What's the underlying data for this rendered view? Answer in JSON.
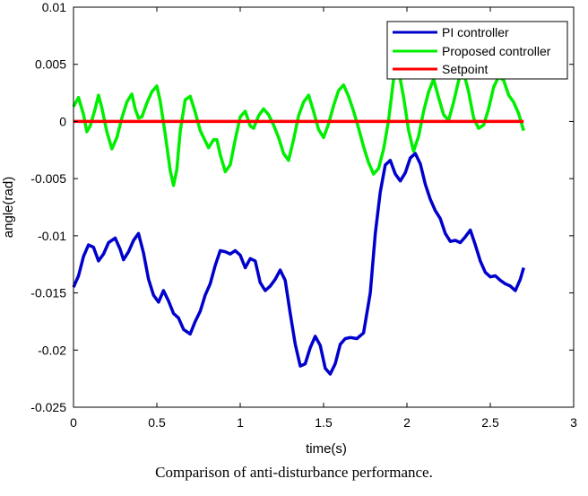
{
  "caption": "Comparison of anti-disturbance performance.",
  "chart_data": {
    "type": "line",
    "title": "",
    "xlabel": "time(s)",
    "ylabel": "angle(rad)",
    "xlim": [
      0,
      3
    ],
    "ylim": [
      -0.025,
      0.01
    ],
    "xticks": [
      0,
      0.5,
      1,
      1.5,
      2,
      2.5,
      3
    ],
    "xtick_labels": [
      "0",
      "0.5",
      "1",
      "1.5",
      "2",
      "2.5",
      "3"
    ],
    "yticks": [
      0.01,
      0.005,
      0,
      -0.005,
      -0.01,
      -0.015,
      -0.02,
      -0.025
    ],
    "ytick_labels": [
      "0.01",
      "0.005",
      "0",
      "-0.005",
      "-0.01",
      "-0.015",
      "-0.02",
      "-0.025"
    ],
    "grid": false,
    "legend_position": "top-right",
    "series": [
      {
        "name": "PI controller",
        "color": "#0000cc",
        "x": [
          0,
          0.03,
          0.06,
          0.09,
          0.12,
          0.15,
          0.18,
          0.21,
          0.25,
          0.28,
          0.3,
          0.33,
          0.36,
          0.39,
          0.42,
          0.45,
          0.48,
          0.51,
          0.54,
          0.57,
          0.6,
          0.63,
          0.66,
          0.7,
          0.73,
          0.76,
          0.79,
          0.82,
          0.85,
          0.88,
          0.91,
          0.94,
          0.97,
          1.0,
          1.03,
          1.06,
          1.09,
          1.12,
          1.15,
          1.18,
          1.21,
          1.24,
          1.27,
          1.3,
          1.33,
          1.36,
          1.39,
          1.42,
          1.45,
          1.48,
          1.51,
          1.54,
          1.57,
          1.6,
          1.63,
          1.66,
          1.7,
          1.74,
          1.78,
          1.81,
          1.84,
          1.87,
          1.9,
          1.93,
          1.96,
          1.99,
          2.02,
          2.05,
          2.08,
          2.11,
          2.14,
          2.17,
          2.2,
          2.23,
          2.26,
          2.29,
          2.32,
          2.35,
          2.38,
          2.41,
          2.44,
          2.47,
          2.5,
          2.53,
          2.56,
          2.59,
          2.62,
          2.65,
          2.68,
          2.7
        ],
        "y": [
          -0.0145,
          -0.0135,
          -0.0118,
          -0.0108,
          -0.011,
          -0.0122,
          -0.0116,
          -0.0106,
          -0.0102,
          -0.0112,
          -0.0121,
          -0.0114,
          -0.0104,
          -0.0098,
          -0.0115,
          -0.0138,
          -0.0152,
          -0.0158,
          -0.0148,
          -0.0157,
          -0.0168,
          -0.0172,
          -0.0182,
          -0.0186,
          -0.0175,
          -0.0166,
          -0.0152,
          -0.0142,
          -0.0126,
          -0.0113,
          -0.0114,
          -0.0116,
          -0.0113,
          -0.0117,
          -0.0128,
          -0.012,
          -0.0122,
          -0.0141,
          -0.0148,
          -0.0144,
          -0.0138,
          -0.013,
          -0.0139,
          -0.0168,
          -0.0195,
          -0.0214,
          -0.0212,
          -0.0198,
          -0.0188,
          -0.0196,
          -0.0216,
          -0.0221,
          -0.0212,
          -0.0195,
          -0.019,
          -0.0189,
          -0.019,
          -0.0185,
          -0.015,
          -0.0098,
          -0.0062,
          -0.0038,
          -0.0034,
          -0.0046,
          -0.0052,
          -0.0045,
          -0.0032,
          -0.0028,
          -0.0037,
          -0.0055,
          -0.0068,
          -0.0078,
          -0.0085,
          -0.0098,
          -0.0105,
          -0.0104,
          -0.0106,
          -0.0101,
          -0.0095,
          -0.0108,
          -0.0122,
          -0.0132,
          -0.0136,
          -0.0135,
          -0.0139,
          -0.0142,
          -0.0144,
          -0.0148,
          -0.0138,
          -0.0128
        ]
      },
      {
        "name": "Proposed controller",
        "color": "#00ee00",
        "x": [
          0,
          0.03,
          0.06,
          0.08,
          0.1,
          0.13,
          0.15,
          0.17,
          0.2,
          0.23,
          0.26,
          0.29,
          0.32,
          0.35,
          0.37,
          0.39,
          0.41,
          0.44,
          0.47,
          0.5,
          0.52,
          0.55,
          0.58,
          0.6,
          0.62,
          0.64,
          0.67,
          0.7,
          0.73,
          0.76,
          0.78,
          0.81,
          0.84,
          0.86,
          0.88,
          0.91,
          0.94,
          0.97,
          1.0,
          1.03,
          1.06,
          1.08,
          1.11,
          1.14,
          1.17,
          1.2,
          1.23,
          1.26,
          1.29,
          1.32,
          1.35,
          1.38,
          1.41,
          1.44,
          1.47,
          1.5,
          1.53,
          1.56,
          1.59,
          1.62,
          1.65,
          1.68,
          1.71,
          1.74,
          1.77,
          1.8,
          1.83,
          1.86,
          1.89,
          1.92,
          1.95,
          1.98,
          2.01,
          2.04,
          2.07,
          2.1,
          2.13,
          2.16,
          2.19,
          2.22,
          2.25,
          2.28,
          2.31,
          2.34,
          2.37,
          2.4,
          2.43,
          2.46,
          2.49,
          2.52,
          2.55,
          2.58,
          2.61,
          2.64,
          2.67,
          2.7
        ],
        "y": [
          0.0013,
          0.0021,
          0.0006,
          -0.0009,
          -0.0004,
          0.0011,
          0.0023,
          0.0012,
          -0.0009,
          -0.0024,
          -0.0014,
          0.0003,
          0.0017,
          0.0024,
          0.0011,
          0.0003,
          0.0004,
          0.0016,
          0.0026,
          0.0031,
          0.0018,
          -0.0011,
          -0.0043,
          -0.0056,
          -0.0042,
          -0.0009,
          0.0019,
          0.0022,
          0.0008,
          -0.0008,
          -0.0014,
          -0.0023,
          -0.0016,
          -0.0016,
          -0.0029,
          -0.0044,
          -0.0038,
          -0.0016,
          0.0004,
          0.0009,
          -0.0004,
          -0.0006,
          0.0005,
          0.0011,
          0.0006,
          -0.0003,
          -0.0014,
          -0.0028,
          -0.0034,
          -0.0016,
          0.0005,
          0.0017,
          0.0023,
          0.0009,
          -0.0007,
          -0.0014,
          -0.0002,
          0.0014,
          0.0027,
          0.0032,
          0.0022,
          0.0009,
          -0.0006,
          -0.0022,
          -0.0036,
          -0.0046,
          -0.0041,
          -0.0024,
          0.0001,
          0.0037,
          0.0045,
          0.0021,
          -0.0008,
          -0.0026,
          -0.0013,
          0.0009,
          0.0026,
          0.0037,
          0.0021,
          0.0006,
          0.0001,
          0.0017,
          0.0036,
          0.0043,
          0.0026,
          0.0003,
          -0.0006,
          -0.0003,
          0.0011,
          0.003,
          0.0039,
          0.0036,
          0.0023,
          0.0017,
          0.0007,
          -0.0008
        ]
      },
      {
        "name": "Setpoint",
        "color": "#ff0000",
        "x": [
          0,
          2.7
        ],
        "y": [
          0,
          0
        ]
      }
    ]
  }
}
